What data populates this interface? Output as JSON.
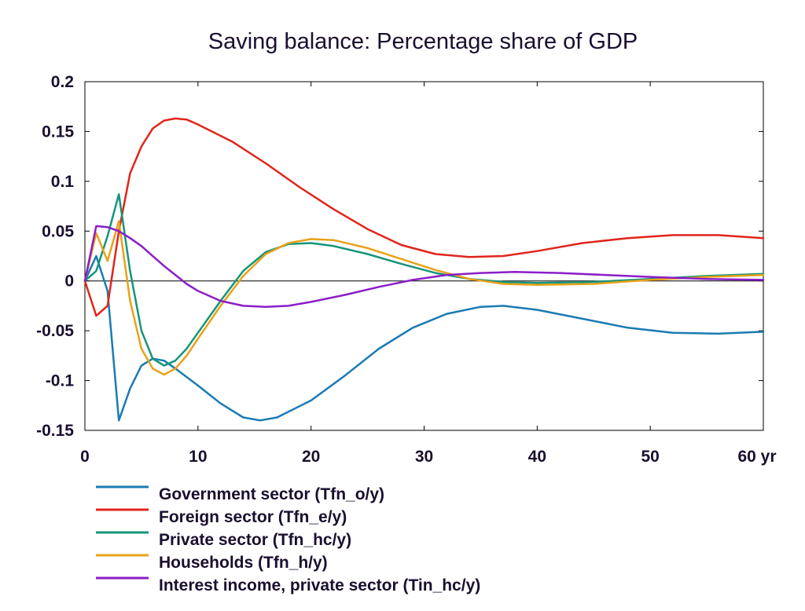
{
  "chart_data": {
    "type": "line",
    "title": "Saving balance: Percentage share of GDP",
    "x_unit_label": "yr",
    "xlim": [
      0,
      60
    ],
    "ylim": [
      -0.15,
      0.2
    ],
    "x_ticks": [
      0,
      10,
      20,
      30,
      40,
      50,
      60
    ],
    "x_tick_labels": [
      "0",
      "10",
      "20",
      "30",
      "40",
      "50",
      "60 yr"
    ],
    "y_ticks": [
      -0.15,
      -0.1,
      -0.05,
      0,
      0.05,
      0.1,
      0.15,
      0.2
    ],
    "y_tick_labels": [
      "-0.15",
      "-0.1",
      "-0.05",
      "0",
      "0.05",
      "0.1",
      "0.15",
      "0.2"
    ],
    "zero_line": true,
    "grid": false,
    "legend_position": "bottom",
    "series": [
      {
        "name": "Government sector (Tfn_o/y)",
        "color": "#1a7bb3",
        "points": [
          [
            0,
            0
          ],
          [
            1,
            0.025
          ],
          [
            2,
            -0.01
          ],
          [
            3,
            -0.14
          ],
          [
            4,
            -0.108
          ],
          [
            5,
            -0.085
          ],
          [
            6,
            -0.078
          ],
          [
            7,
            -0.08
          ],
          [
            8,
            -0.088
          ],
          [
            10,
            -0.105
          ],
          [
            12,
            -0.123
          ],
          [
            14,
            -0.137
          ],
          [
            15.5,
            -0.14
          ],
          [
            17,
            -0.137
          ],
          [
            20,
            -0.12
          ],
          [
            23,
            -0.095
          ],
          [
            26,
            -0.068
          ],
          [
            29,
            -0.047
          ],
          [
            32,
            -0.033
          ],
          [
            35,
            -0.026
          ],
          [
            37,
            -0.025
          ],
          [
            40,
            -0.029
          ],
          [
            44,
            -0.038
          ],
          [
            48,
            -0.047
          ],
          [
            52,
            -0.052
          ],
          [
            56,
            -0.053
          ],
          [
            60,
            -0.051
          ]
        ]
      },
      {
        "name": "Foreign sector (Tfn_e/y)",
        "color": "#e0251b",
        "points": [
          [
            0,
            0
          ],
          [
            1,
            -0.035
          ],
          [
            2,
            -0.025
          ],
          [
            3,
            0.05
          ],
          [
            4,
            0.108
          ],
          [
            5,
            0.135
          ],
          [
            6,
            0.153
          ],
          [
            7,
            0.161
          ],
          [
            8,
            0.163
          ],
          [
            9,
            0.162
          ],
          [
            10,
            0.157
          ],
          [
            13,
            0.14
          ],
          [
            16,
            0.118
          ],
          [
            19,
            0.094
          ],
          [
            22,
            0.072
          ],
          [
            25,
            0.052
          ],
          [
            28,
            0.036
          ],
          [
            31,
            0.027
          ],
          [
            34,
            0.024
          ],
          [
            37,
            0.025
          ],
          [
            40,
            0.03
          ],
          [
            44,
            0.038
          ],
          [
            48,
            0.043
          ],
          [
            52,
            0.046
          ],
          [
            56,
            0.046
          ],
          [
            60,
            0.043
          ]
        ]
      },
      {
        "name": "Private sector (Tfn_hc/y)",
        "color": "#16957a",
        "points": [
          [
            0,
            0
          ],
          [
            1,
            0.01
          ],
          [
            2,
            0.045
          ],
          [
            3,
            0.087
          ],
          [
            4,
            0.01
          ],
          [
            5,
            -0.05
          ],
          [
            6,
            -0.078
          ],
          [
            7,
            -0.085
          ],
          [
            8,
            -0.08
          ],
          [
            9,
            -0.068
          ],
          [
            10,
            -0.052
          ],
          [
            12,
            -0.02
          ],
          [
            14,
            0.01
          ],
          [
            16,
            0.029
          ],
          [
            18,
            0.037
          ],
          [
            20,
            0.038
          ],
          [
            22,
            0.035
          ],
          [
            25,
            0.027
          ],
          [
            28,
            0.017
          ],
          [
            31,
            0.008
          ],
          [
            34,
            0.002
          ],
          [
            37,
            -0.001
          ],
          [
            40,
            -0.002
          ],
          [
            45,
            -0.001
          ],
          [
            50,
            0.002
          ],
          [
            55,
            0.005
          ],
          [
            60,
            0.007
          ]
        ]
      },
      {
        "name": "Households (Tfn_h/y)",
        "color": "#e8a21a",
        "points": [
          [
            0,
            0
          ],
          [
            1,
            0.048
          ],
          [
            2,
            0.02
          ],
          [
            3,
            0.06
          ],
          [
            4,
            -0.02
          ],
          [
            5,
            -0.068
          ],
          [
            6,
            -0.088
          ],
          [
            7,
            -0.094
          ],
          [
            8,
            -0.088
          ],
          [
            9,
            -0.075
          ],
          [
            10,
            -0.058
          ],
          [
            12,
            -0.025
          ],
          [
            14,
            0.005
          ],
          [
            16,
            0.027
          ],
          [
            18,
            0.038
          ],
          [
            20,
            0.042
          ],
          [
            22,
            0.041
          ],
          [
            25,
            0.033
          ],
          [
            28,
            0.022
          ],
          [
            31,
            0.011
          ],
          [
            34,
            0.002
          ],
          [
            37,
            -0.003
          ],
          [
            40,
            -0.004
          ],
          [
            45,
            -0.003
          ],
          [
            50,
            0.001
          ],
          [
            55,
            0.004
          ],
          [
            60,
            0.006
          ]
        ]
      },
      {
        "name": "Interest income, private sector (Tin_hc/y)",
        "color": "#8b1ec8",
        "points": [
          [
            0,
            0
          ],
          [
            1,
            0.055
          ],
          [
            2,
            0.054
          ],
          [
            3,
            0.05
          ],
          [
            4,
            0.043
          ],
          [
            5,
            0.035
          ],
          [
            6,
            0.025
          ],
          [
            7,
            0.015
          ],
          [
            8,
            0.006
          ],
          [
            9,
            -0.003
          ],
          [
            10,
            -0.01
          ],
          [
            12,
            -0.02
          ],
          [
            14,
            -0.025
          ],
          [
            16,
            -0.026
          ],
          [
            18,
            -0.025
          ],
          [
            20,
            -0.021
          ],
          [
            23,
            -0.014
          ],
          [
            26,
            -0.006
          ],
          [
            29,
            0.001
          ],
          [
            32,
            0.006
          ],
          [
            35,
            0.008
          ],
          [
            38,
            0.009
          ],
          [
            42,
            0.008
          ],
          [
            46,
            0.006
          ],
          [
            50,
            0.004
          ],
          [
            55,
            0.002
          ],
          [
            60,
            0.001
          ]
        ]
      }
    ]
  }
}
